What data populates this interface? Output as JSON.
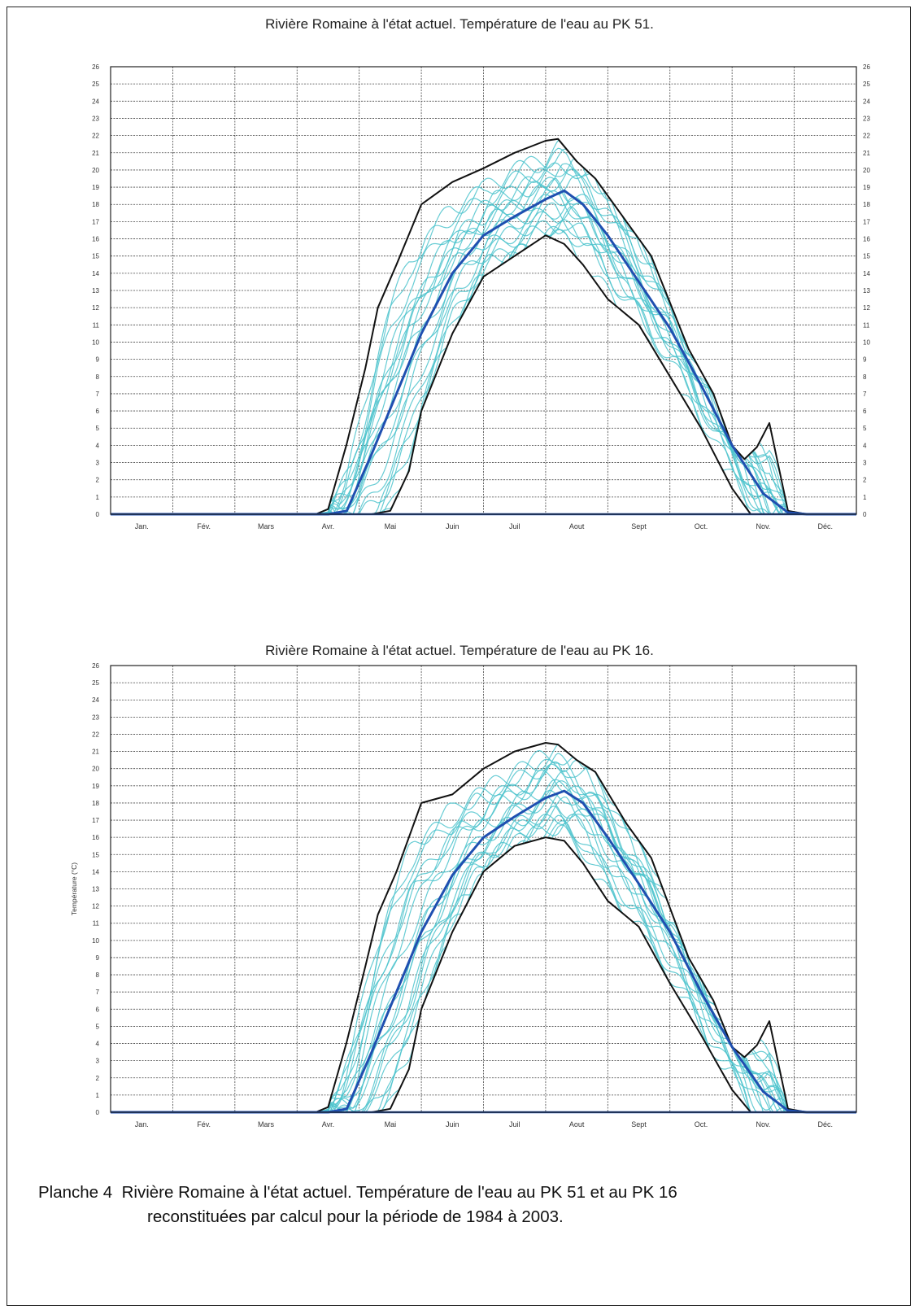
{
  "caption": {
    "label": "Planche 4",
    "line1": "Rivière Romaine à l'état actuel.  Température de l'eau au PK 51 et au PK 16",
    "line2": "reconstituées par calcul pour la période de 1984 à 2003."
  },
  "chart_data": [
    {
      "type": "line",
      "title": "Rivière Romaine à l'état actuel.  Température de l'eau au PK 51.",
      "xlabel": "",
      "ylabel": "",
      "categories": [
        "Jan.",
        "Fév.",
        "Mars",
        "Avr.",
        "Mai",
        "Juin",
        "Juil",
        "Aout",
        "Sept",
        "Oct.",
        "Nov.",
        "Déc."
      ],
      "ylim": [
        0,
        26
      ],
      "yticks": [
        0,
        1,
        2,
        3,
        4,
        5,
        6,
        7,
        8,
        9,
        10,
        11,
        12,
        13,
        14,
        15,
        16,
        17,
        18,
        19,
        20,
        21,
        22,
        23,
        24,
        25,
        26
      ],
      "y_labels_both_sides": true,
      "grid": true,
      "colors": {
        "mean": "#1f4fb0",
        "envelope": "#111111",
        "years": "#4cc3cc"
      },
      "series": [
        {
          "role": "max",
          "x": [
            0,
            3.3,
            3.5,
            3.8,
            4.1,
            4.3,
            4.6,
            5.0,
            5.5,
            6.0,
            6.5,
            7.0,
            7.2,
            7.5,
            7.8,
            8.3,
            8.7,
            9.3,
            9.7,
            10.0,
            10.2,
            10.4,
            10.6,
            10.9,
            11.2,
            12
          ],
          "y": [
            0,
            0,
            0.3,
            4.1,
            8.5,
            12.0,
            14.5,
            18.0,
            19.3,
            20.1,
            21.0,
            21.7,
            21.8,
            20.5,
            19.5,
            17.0,
            15.0,
            9.6,
            7.0,
            4.0,
            3.2,
            3.9,
            5.3,
            0.2,
            0,
            0
          ]
        },
        {
          "role": "mean",
          "x": [
            0,
            3.5,
            3.8,
            4.2,
            4.6,
            5.0,
            5.5,
            6.0,
            6.5,
            7.0,
            7.3,
            7.6,
            8.0,
            8.5,
            9.0,
            9.5,
            10.0,
            10.5,
            10.9,
            11.2,
            12
          ],
          "y": [
            0,
            0,
            0.2,
            3.5,
            7.0,
            10.5,
            14.0,
            16.2,
            17.3,
            18.3,
            18.8,
            18.0,
            16.2,
            13.5,
            10.8,
            7.5,
            4.0,
            1.2,
            0.1,
            0,
            0
          ]
        },
        {
          "role": "min",
          "x": [
            0,
            3.8,
            4.2,
            4.5,
            4.8,
            5.0,
            5.5,
            6.0,
            6.5,
            7.0,
            7.3,
            7.6,
            8.0,
            8.5,
            9.0,
            9.5,
            10.0,
            10.3,
            10.5,
            10.9,
            12
          ],
          "y": [
            0,
            0,
            0,
            0.2,
            2.5,
            6.0,
            10.5,
            13.8,
            15.0,
            16.2,
            15.7,
            14.5,
            12.5,
            11.0,
            8.0,
            5.0,
            1.5,
            0,
            0,
            0,
            0
          ]
        }
      ]
    },
    {
      "type": "line",
      "title": "Rivière Romaine à l'état actuel.  Température de l'eau au PK 16.",
      "xlabel": "",
      "ylabel": "Température (°C)",
      "categories": [
        "Jan.",
        "Fév.",
        "Mars",
        "Avr.",
        "Mai",
        "Juin",
        "Juil",
        "Aout",
        "Sept",
        "Oct.",
        "Nov.",
        "Déc."
      ],
      "ylim": [
        0,
        26
      ],
      "yticks": [
        0,
        1,
        2,
        3,
        4,
        5,
        6,
        7,
        8,
        9,
        10,
        11,
        12,
        13,
        14,
        15,
        16,
        17,
        18,
        19,
        20,
        21,
        22,
        23,
        24,
        25,
        26
      ],
      "y_labels_both_sides": false,
      "grid": true,
      "colors": {
        "mean": "#1f4fb0",
        "envelope": "#111111",
        "years": "#4cc3cc"
      },
      "series": [
        {
          "role": "max",
          "x": [
            0,
            3.3,
            3.5,
            3.8,
            4.1,
            4.3,
            4.6,
            5.0,
            5.5,
            6.0,
            6.5,
            7.0,
            7.2,
            7.5,
            7.8,
            8.3,
            8.7,
            9.3,
            9.7,
            10.0,
            10.2,
            10.4,
            10.6,
            10.9,
            11.2,
            12
          ],
          "y": [
            0,
            0,
            0.3,
            4.1,
            8.5,
            11.5,
            14.0,
            18.0,
            18.5,
            20.0,
            21.0,
            21.5,
            21.4,
            20.5,
            19.8,
            16.8,
            14.8,
            9.0,
            6.5,
            3.8,
            3.2,
            3.9,
            5.3,
            0.2,
            0,
            0
          ]
        },
        {
          "role": "mean",
          "x": [
            0,
            3.5,
            3.8,
            4.2,
            4.6,
            5.0,
            5.5,
            6.0,
            6.5,
            7.0,
            7.3,
            7.6,
            8.0,
            8.5,
            9.0,
            9.5,
            10.0,
            10.5,
            10.9,
            11.2,
            12
          ],
          "y": [
            0,
            0,
            0.2,
            3.5,
            7.0,
            10.5,
            13.8,
            16.0,
            17.2,
            18.3,
            18.7,
            18.0,
            16.0,
            13.3,
            10.5,
            7.0,
            3.8,
            1.2,
            0.1,
            0,
            0
          ]
        },
        {
          "role": "min",
          "x": [
            0,
            3.8,
            4.2,
            4.5,
            4.8,
            5.0,
            5.5,
            6.0,
            6.5,
            7.0,
            7.3,
            7.6,
            8.0,
            8.5,
            9.0,
            9.5,
            10.0,
            10.3,
            10.5,
            10.9,
            12
          ],
          "y": [
            0,
            0,
            0,
            0.2,
            2.5,
            6.0,
            10.5,
            14.0,
            15.5,
            16.0,
            15.8,
            14.5,
            12.3,
            10.8,
            7.5,
            4.5,
            1.3,
            0,
            0,
            0,
            0
          ]
        }
      ]
    }
  ]
}
